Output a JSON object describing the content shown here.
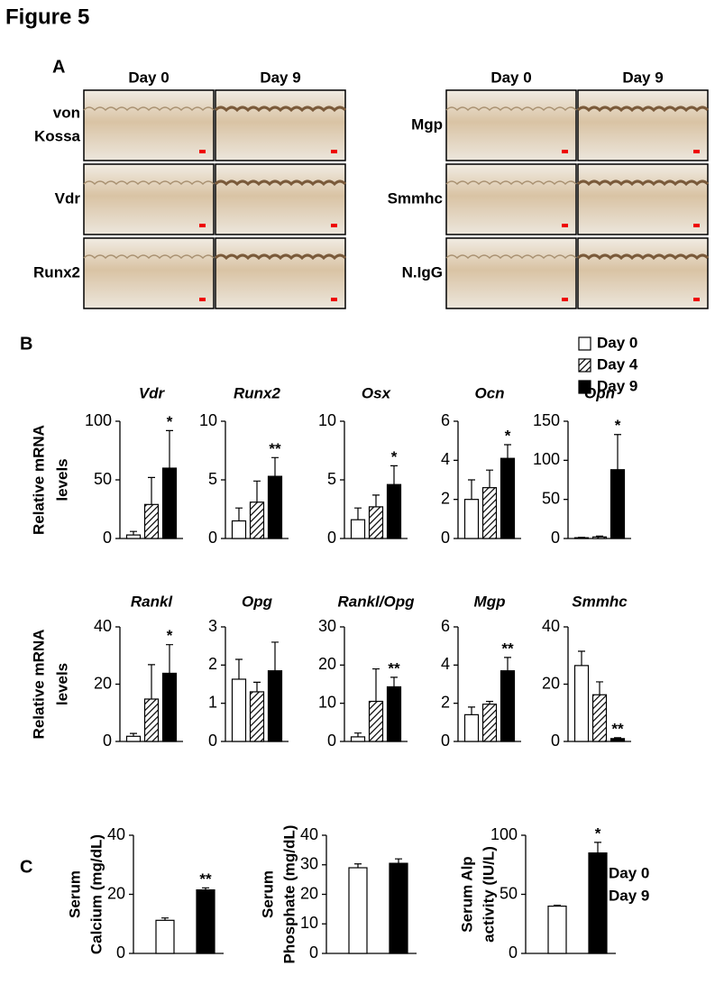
{
  "figure_title": "Figure 5",
  "panel_a": {
    "label": "A",
    "groups": [
      {
        "columns": [
          "Day 0",
          "Day 9"
        ],
        "rows": [
          [
            "von",
            "Kossa"
          ],
          [
            "Vdr"
          ],
          [
            "Runx2"
          ]
        ]
      },
      {
        "columns": [
          "Day 0",
          "Day 9"
        ],
        "rows": [
          [
            "Mgp"
          ],
          [
            "Smmhc"
          ],
          [
            "N.IgG"
          ]
        ]
      }
    ]
  },
  "panel_b": {
    "label": "B",
    "legend": [
      {
        "name": "Day 0",
        "fill": "white"
      },
      {
        "name": "Day 4",
        "fill": "hatch"
      },
      {
        "name": "Day 9",
        "fill": "black"
      }
    ]
  },
  "panel_c": {
    "label": "C",
    "legend": [
      {
        "name": "Day 0",
        "fill": "white"
      },
      {
        "name": "Day 9",
        "fill": "black"
      }
    ]
  },
  "chart_data": [
    {
      "type": "bar",
      "title": "Vdr",
      "ylabel": [
        "Relative mRNA",
        "levels"
      ],
      "categories": [
        null,
        null,
        null
      ],
      "values": [
        3,
        29,
        60
      ],
      "errors": [
        3,
        23,
        32
      ],
      "significance": [
        null,
        null,
        "*"
      ],
      "ylim": [
        0,
        100
      ],
      "yticks": [
        0,
        50,
        100
      ]
    },
    {
      "type": "bar",
      "title": "Runx2",
      "categories": [
        null,
        null,
        null
      ],
      "values": [
        1.5,
        3.1,
        5.3
      ],
      "errors": [
        1.1,
        1.8,
        1.6
      ],
      "significance": [
        null,
        null,
        "**"
      ],
      "ylim": [
        0,
        10
      ],
      "yticks": [
        0,
        5,
        10
      ]
    },
    {
      "type": "bar",
      "title": "Osx",
      "categories": [
        null,
        null,
        null
      ],
      "values": [
        1.6,
        2.7,
        4.6
      ],
      "errors": [
        1.0,
        1.0,
        1.6
      ],
      "significance": [
        null,
        null,
        "*"
      ],
      "ylim": [
        0,
        10
      ],
      "yticks": [
        0,
        5,
        10
      ]
    },
    {
      "type": "bar",
      "title": "Ocn",
      "categories": [
        null,
        null,
        null
      ],
      "values": [
        2.0,
        2.6,
        4.1
      ],
      "errors": [
        1.0,
        0.9,
        0.7
      ],
      "significance": [
        null,
        null,
        "*"
      ],
      "ylim": [
        0,
        6
      ],
      "yticks": [
        0,
        2,
        4,
        6
      ]
    },
    {
      "type": "bar",
      "title": "Opn",
      "categories": [
        null,
        null,
        null
      ],
      "values": [
        1,
        2,
        88
      ],
      "errors": [
        0.5,
        1,
        45
      ],
      "significance": [
        null,
        null,
        "*"
      ],
      "ylim": [
        0,
        150
      ],
      "yticks": [
        0,
        50,
        100,
        150
      ]
    },
    {
      "type": "bar",
      "title": "Rankl",
      "ylabel": [
        "Relative mRNA",
        "levels"
      ],
      "categories": [
        null,
        null,
        null
      ],
      "values": [
        1.8,
        14.8,
        23.8
      ],
      "errors": [
        1,
        12,
        10
      ],
      "significance": [
        null,
        null,
        "*"
      ],
      "ylim": [
        0,
        40
      ],
      "yticks": [
        0,
        20,
        40
      ]
    },
    {
      "type": "bar",
      "title": "Opg",
      "categories": [
        null,
        null,
        null
      ],
      "values": [
        1.63,
        1.3,
        1.85
      ],
      "errors": [
        0.52,
        0.25,
        0.75
      ],
      "significance": [
        null,
        null,
        null
      ],
      "ylim": [
        0,
        3
      ],
      "yticks": [
        0,
        1,
        2,
        3
      ]
    },
    {
      "type": "bar",
      "title": "Rankl/Opg",
      "categories": [
        null,
        null,
        null
      ],
      "values": [
        1.2,
        10.5,
        14.3
      ],
      "errors": [
        1,
        8.5,
        2.5
      ],
      "significance": [
        null,
        null,
        "**"
      ],
      "ylim": [
        0,
        30
      ],
      "yticks": [
        0,
        10,
        20,
        30
      ]
    },
    {
      "type": "bar",
      "title": "Mgp",
      "categories": [
        null,
        null,
        null
      ],
      "values": [
        1.4,
        1.95,
        3.7
      ],
      "errors": [
        0.4,
        0.15,
        0.7
      ],
      "significance": [
        null,
        null,
        "**"
      ],
      "ylim": [
        0,
        6
      ],
      "yticks": [
        0,
        2,
        4,
        6
      ]
    },
    {
      "type": "bar",
      "title": "Smmhc",
      "categories": [
        null,
        null,
        null
      ],
      "values": [
        26.5,
        16.3,
        1
      ],
      "errors": [
        5,
        4.5,
        0.3
      ],
      "significance": [
        null,
        null,
        "**"
      ],
      "ylim": [
        0,
        40
      ],
      "yticks": [
        0,
        20,
        40
      ]
    },
    {
      "type": "bar",
      "ylabel": [
        "Serum",
        "Calcium (mg/dL)"
      ],
      "categories": [
        null,
        null
      ],
      "values": [
        11.2,
        21.5
      ],
      "errors": [
        0.8,
        0.7
      ],
      "significance": [
        null,
        "**"
      ],
      "ylim": [
        0,
        40
      ],
      "yticks": [
        0,
        20,
        40
      ]
    },
    {
      "type": "bar",
      "ylabel": [
        "Serum",
        "Phosphate (mg/dL)"
      ],
      "categories": [
        null,
        null
      ],
      "values": [
        29,
        30.5
      ],
      "errors": [
        1.3,
        1.5
      ],
      "significance": [
        null,
        null
      ],
      "ylim": [
        0,
        40
      ],
      "yticks": [
        0,
        10,
        20,
        30,
        40
      ]
    },
    {
      "type": "bar",
      "ylabel": [
        "Serum Alp",
        "activity (IU/L)"
      ],
      "categories": [
        null,
        null
      ],
      "values": [
        40,
        85
      ],
      "errors": [
        0.8,
        9
      ],
      "significance": [
        null,
        "*"
      ],
      "ylim": [
        0,
        100
      ],
      "yticks": [
        0,
        50,
        100
      ]
    }
  ]
}
